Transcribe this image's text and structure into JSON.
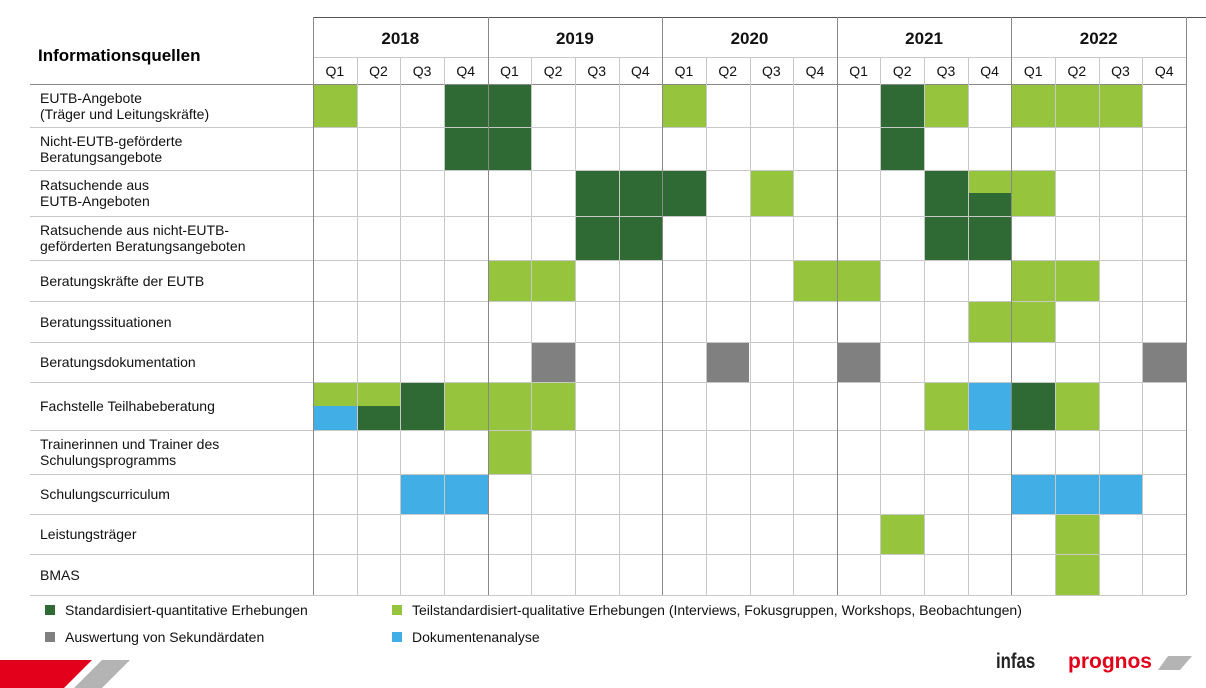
{
  "header": {
    "title": "Informationsquellen"
  },
  "years": [
    "2018",
    "2019",
    "2020",
    "2021",
    "2022"
  ],
  "quarters": [
    "Q1",
    "Q2",
    "Q3",
    "Q4"
  ],
  "legend": [
    {
      "name": "Standardisiert-quantitative Erhebungen",
      "color": "#2f6a35"
    },
    {
      "name": "Teilstandardisiert-qualitative Erhebungen (Interviews, Fokusgruppen, Workshops, Beobachtungen)",
      "color": "#96c43c"
    },
    {
      "name": "Auswertung von Sekundärdaten",
      "color": "#808080"
    },
    {
      "name": "Dokumentenanalyse",
      "color": "#41afe6"
    }
  ],
  "rows": [
    {
      "label": "EUTB-Angebote\n(Träger und Leitungskräfte)",
      "cells": [
        [
          1
        ],
        null,
        null,
        [
          0
        ],
        [
          0
        ],
        null,
        null,
        null,
        [
          1
        ],
        null,
        null,
        null,
        null,
        [
          0
        ],
        [
          1
        ],
        null,
        [
          1
        ],
        [
          1
        ],
        [
          1
        ],
        null
      ]
    },
    {
      "label": "Nicht-EUTB-geförderte\nBeratungsangebote",
      "cells": [
        null,
        null,
        null,
        [
          0
        ],
        [
          0
        ],
        null,
        null,
        null,
        null,
        null,
        null,
        null,
        null,
        [
          0
        ],
        null,
        null,
        null,
        null,
        null,
        null
      ]
    },
    {
      "label": "Ratsuchende aus\nEUTB-Angeboten",
      "cells": [
        null,
        null,
        null,
        null,
        null,
        null,
        [
          0
        ],
        [
          0
        ],
        [
          0
        ],
        null,
        [
          1
        ],
        null,
        null,
        null,
        [
          0
        ],
        [
          1,
          0
        ],
        [
          1
        ],
        null,
        null,
        null
      ]
    },
    {
      "label": "Ratsuchende aus nicht-EUTB-\ngeförderten Beratungsangeboten",
      "cells": [
        null,
        null,
        null,
        null,
        null,
        null,
        [
          0
        ],
        [
          0
        ],
        null,
        null,
        null,
        null,
        null,
        null,
        [
          0
        ],
        [
          0
        ],
        null,
        null,
        null,
        null
      ]
    },
    {
      "label": "Beratungskräfte der EUTB",
      "cells": [
        null,
        null,
        null,
        null,
        [
          1
        ],
        [
          1
        ],
        null,
        null,
        null,
        null,
        null,
        [
          1
        ],
        [
          1
        ],
        null,
        null,
        null,
        [
          1
        ],
        [
          1
        ],
        null,
        null
      ]
    },
    {
      "label": "Beratungssituationen",
      "cells": [
        null,
        null,
        null,
        null,
        null,
        null,
        null,
        null,
        null,
        null,
        null,
        null,
        null,
        null,
        null,
        [
          1
        ],
        [
          1
        ],
        null,
        null,
        null
      ]
    },
    {
      "label": "Beratungsdokumentation",
      "cells": [
        null,
        null,
        null,
        null,
        null,
        [
          2
        ],
        null,
        null,
        null,
        [
          2
        ],
        null,
        null,
        [
          2
        ],
        null,
        null,
        null,
        null,
        null,
        null,
        [
          2
        ]
      ]
    },
    {
      "label": "Fachstelle Teilhabeberatung",
      "cells": [
        [
          1,
          3
        ],
        [
          1,
          0
        ],
        [
          0
        ],
        [
          1
        ],
        [
          1
        ],
        [
          1
        ],
        null,
        null,
        null,
        null,
        null,
        null,
        null,
        null,
        [
          1
        ],
        [
          3
        ],
        [
          0
        ],
        [
          1
        ],
        null,
        null
      ]
    },
    {
      "label": "Trainerinnen und Trainer des\nSchulungsprogramms",
      "cells": [
        null,
        null,
        null,
        null,
        [
          1
        ],
        null,
        null,
        null,
        null,
        null,
        null,
        null,
        null,
        null,
        null,
        null,
        null,
        null,
        null,
        null
      ]
    },
    {
      "label": "Schulungscurriculum",
      "cells": [
        null,
        null,
        [
          3
        ],
        [
          3
        ],
        null,
        null,
        null,
        null,
        null,
        null,
        null,
        null,
        null,
        null,
        null,
        null,
        [
          3
        ],
        [
          3
        ],
        [
          3
        ],
        null
      ]
    },
    {
      "label": "Leistungsträger",
      "cells": [
        null,
        null,
        null,
        null,
        null,
        null,
        null,
        null,
        null,
        null,
        null,
        null,
        null,
        [
          1
        ],
        null,
        null,
        null,
        [
          1
        ],
        null,
        null
      ]
    },
    {
      "label": "BMAS",
      "cells": [
        null,
        null,
        null,
        null,
        null,
        null,
        null,
        null,
        null,
        null,
        null,
        null,
        null,
        null,
        null,
        null,
        null,
        [
          1
        ],
        null,
        null
      ]
    }
  ],
  "logos": [
    "infas",
    "prognos"
  ]
}
